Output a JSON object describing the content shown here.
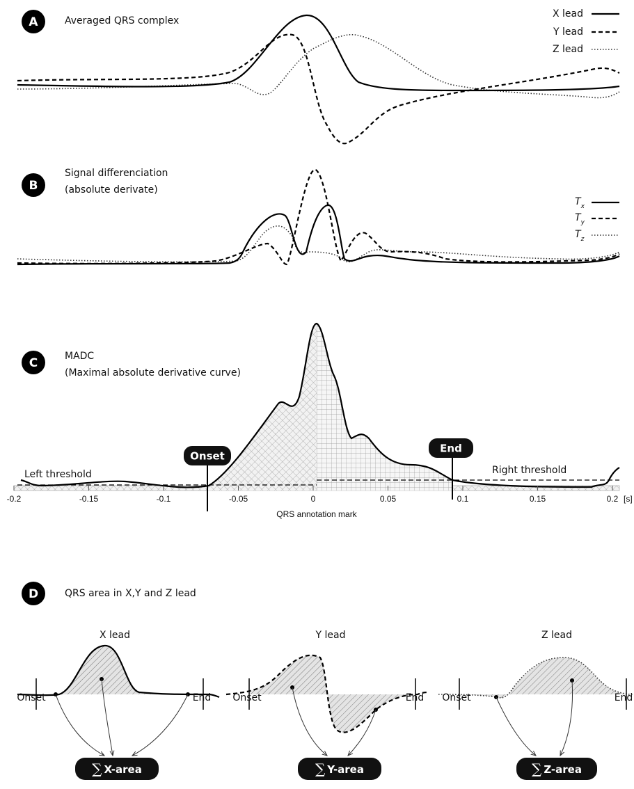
{
  "panels": {
    "a": {
      "letter": "A",
      "title": "Averaged QRS complex",
      "legend": [
        "X lead",
        "Y lead",
        "Z lead"
      ]
    },
    "b": {
      "letter": "B",
      "title": [
        "Signal differenciation",
        "(absolute derivate)"
      ],
      "legend": [
        {
          "symbol": "T",
          "subscript": "x"
        },
        {
          "symbol": "T",
          "subscript": "y"
        },
        {
          "symbol": "T",
          "subscript": "z"
        }
      ]
    },
    "c": {
      "letter": "C",
      "title": [
        "MADC",
        "(Maximal absolute derivative curve)"
      ],
      "left_threshold": "Left threshold",
      "right_threshold": "Right threshold",
      "onset": "Onset",
      "end": "End",
      "axis": {
        "ticks": [
          -0.2,
          -0.15,
          -0.1,
          -0.05,
          0,
          0.05,
          0.1,
          0.15,
          0.2
        ],
        "unit": "[s]",
        "label": "QRS annotation mark"
      }
    },
    "d": {
      "letter": "D",
      "title": "QRS area in X,Y and Z lead",
      "sum_symbol": "∑",
      "leads": [
        {
          "title": "X lead",
          "onset": "Onset",
          "end": "End",
          "area": "X-area"
        },
        {
          "title": "Y lead",
          "onset": "Onset",
          "end": "End",
          "area": "Y-area"
        },
        {
          "title": "Z lead",
          "onset": "Onset",
          "end": "End",
          "area": "Z-area"
        }
      ]
    }
  }
}
